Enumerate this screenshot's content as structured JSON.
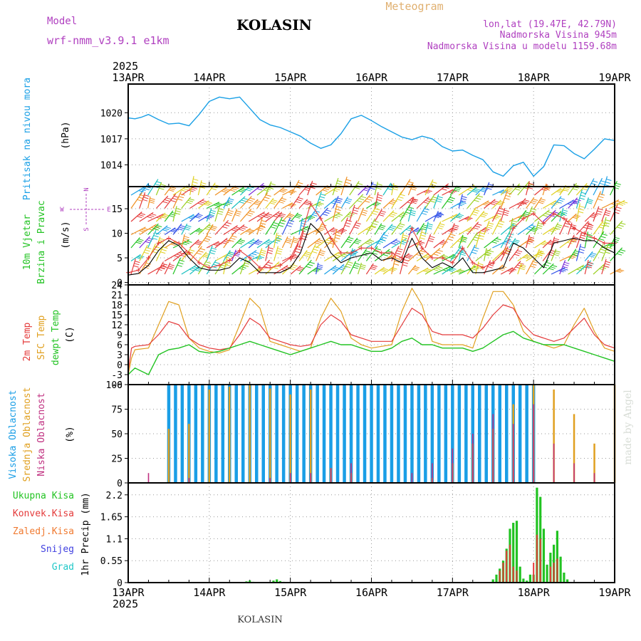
{
  "header": {
    "model_label": "Model",
    "model_name": "wrf-nmm_v3.9.1 e1km",
    "station": "KOLASIN",
    "product": "Meteogram",
    "coords": "lon,lat (19.47E, 42.79N)",
    "elevation": "Nadmorska Visina 945m",
    "model_elevation": "Nadmorska Visina u modelu 1159.68m"
  },
  "footer": {
    "station": "KOLASIN",
    "watermark": "made by Angel"
  },
  "time_axis": {
    "year_top": "2025",
    "year_bottom": "2025",
    "ticks": [
      "13APR",
      "14APR",
      "15APR",
      "16APR",
      "17APR",
      "18APR",
      "19APR"
    ]
  },
  "colors": {
    "pressure": "#1aa0e6",
    "wind_speed": "#000000",
    "gust": "#e43a3a",
    "temp2m": "#e43a3a",
    "sfc_temp": "#e0a020",
    "dewpt": "#22c322",
    "cloud_high": "#1a9ee6",
    "cloud_mid": "#e0a020",
    "cloud_low": "#c03080",
    "precip_total": "#22c322",
    "precip_conv": "#e43a3a",
    "precip_frozen": "#f07a30",
    "snow": "#4040e0",
    "graupel": "#20c8c8",
    "label_purple": "#b040c0"
  },
  "panels": {
    "pressure": {
      "label_lines": [
        "Pritisak na nivou mora"
      ],
      "unit": "(hPa)"
    },
    "wind": {
      "label_lines": [
        "10m Vjetar",
        "Brzina i Pravac"
      ],
      "unit": "(m/s)",
      "compass": [
        "W",
        "E",
        "S",
        "N"
      ]
    },
    "temp": {
      "label_lines": [
        "2m Temp",
        "SFC Temp",
        "dewpt Temp"
      ],
      "unit": "(C)"
    },
    "cloud": {
      "label_lines": [
        "Visoka Oblacnost",
        "Srednja Oblacnost",
        "Niska Oblacnost"
      ],
      "unit": "(%)"
    },
    "precip": {
      "label_lines": [
        "Ukupna Kisa",
        "Konvek.Kisa",
        "Zaledj.Kisa",
        "Snijeg",
        "Grad"
      ],
      "unit": "1hr Precip (mm)"
    }
  },
  "chart_data": [
    {
      "type": "line",
      "title": "Pritisak na nivou mora",
      "ylabel": "(hPa)",
      "ylim": [
        1011.5,
        1023.3
      ],
      "yticks": [
        "1014",
        "1017",
        "1020"
      ],
      "grid": true,
      "series": [
        {
          "name": "Pritisak na nivou mora",
          "x": [
            0,
            2,
            4,
            6,
            9,
            12,
            15,
            18,
            21,
            24,
            27,
            30,
            33,
            36,
            39,
            42,
            45,
            48,
            51,
            54,
            57,
            60,
            63,
            66,
            69,
            72,
            75,
            78,
            81,
            84,
            87,
            90,
            93,
            96,
            99,
            102,
            105,
            108,
            111,
            114,
            117,
            120,
            123,
            126,
            129,
            132,
            135,
            138,
            141,
            144
          ],
          "values": [
            1019.4,
            1019.3,
            1019.5,
            1019.8,
            1019.2,
            1018.7,
            1018.8,
            1018.5,
            1019.8,
            1021.3,
            1021.8,
            1021.6,
            1021.8,
            1020.5,
            1019.2,
            1018.6,
            1018.3,
            1017.8,
            1017.3,
            1016.5,
            1015.9,
            1016.3,
            1017.6,
            1019.3,
            1019.7,
            1019.1,
            1018.4,
            1017.8,
            1017.2,
            1016.9,
            1017.3,
            1017.0,
            1016.1,
            1015.6,
            1015.7,
            1015.1,
            1014.6,
            1013.2,
            1012.7,
            1013.9,
            1014.3,
            1012.7,
            1013.8,
            1016.3,
            1016.2,
            1015.3,
            1014.7,
            1015.8,
            1017.0,
            1016.8
          ]
        }
      ]
    },
    {
      "type": "line",
      "title": "10m Vjetar Brzina i Pravac",
      "ylabel": "(m/s)",
      "ylim": [
        -0.5,
        19.5
      ],
      "yticks": [
        "0",
        "5",
        "10",
        "15"
      ],
      "grid": true,
      "series": [
        {
          "x": [
            0,
            3,
            6,
            9,
            12,
            15,
            18,
            21,
            24,
            27,
            30,
            33,
            36,
            39,
            42,
            45,
            48,
            51,
            54,
            57,
            60,
            63,
            66,
            69,
            72,
            75,
            78,
            81,
            84,
            87,
            90,
            93,
            96,
            99,
            102,
            105,
            108,
            111,
            114,
            117,
            120,
            123,
            126,
            129,
            132,
            135,
            138,
            141,
            144
          ],
          "values": [
            1.5,
            1.8,
            3.5,
            6.5,
            8.5,
            7.5,
            5,
            3,
            2.5,
            2.5,
            3,
            5,
            4,
            2,
            2,
            2,
            3,
            6,
            12,
            10,
            6,
            4,
            5,
            5.5,
            6,
            4.5,
            5,
            4,
            9,
            5,
            3,
            4,
            3,
            5,
            2,
            2,
            2.5,
            3,
            8,
            7,
            5,
            3,
            8,
            8.5,
            9,
            8.5,
            8.5,
            7,
            6
          ]
        },
        {
          "x": [
            0,
            3,
            6,
            9,
            12,
            15,
            18,
            21,
            24,
            27,
            30,
            33,
            36,
            39,
            42,
            45,
            48,
            51,
            54,
            57,
            60,
            63,
            66,
            69,
            72,
            75,
            78,
            81,
            84,
            87,
            90,
            93,
            96,
            99,
            102,
            105,
            108,
            111,
            114,
            117,
            120,
            123,
            126,
            129,
            132,
            135,
            138,
            141,
            144
          ],
          "values": [
            2,
            2.5,
            5,
            8,
            9,
            8,
            6,
            4,
            3,
            3.5,
            4.5,
            6.5,
            5,
            3,
            3,
            3.5,
            5,
            9,
            16,
            13,
            9,
            6,
            6,
            7,
            7,
            6,
            6,
            5,
            11,
            7,
            5,
            5,
            4,
            7,
            4,
            3,
            4,
            6,
            11,
            13,
            14,
            12,
            14,
            13,
            11,
            10,
            9,
            8,
            8
          ]
        }
      ]
    },
    {
      "type": "line",
      "title": "2m Temp / SFC Temp / dewpt Temp",
      "ylabel": "(C)",
      "ylim": [
        -6,
        24
      ],
      "yticks": [
        "-6",
        "-3",
        "0",
        "3",
        "6",
        "9",
        "12",
        "15",
        "18",
        "21",
        "24"
      ],
      "grid": true,
      "series": [
        {
          "name": "2m Temp",
          "x": [
            0,
            1,
            2,
            6,
            9,
            12,
            15,
            18,
            21,
            24,
            27,
            30,
            33,
            36,
            39,
            42,
            45,
            48,
            51,
            54,
            57,
            60,
            63,
            66,
            69,
            72,
            75,
            78,
            81,
            84,
            87,
            90,
            93,
            96,
            99,
            102,
            105,
            108,
            111,
            114,
            117,
            120,
            123,
            126,
            129,
            132,
            135,
            138,
            141,
            144
          ],
          "values": [
            -2,
            5,
            5.5,
            6,
            9,
            13,
            12,
            8,
            6,
            5,
            4.5,
            5,
            9,
            14,
            12,
            8,
            7,
            6,
            5.5,
            6,
            12,
            15,
            13,
            9,
            8,
            7,
            7,
            7,
            12,
            17,
            15,
            10,
            9,
            9,
            9,
            8,
            11,
            15,
            18,
            17,
            12,
            9,
            8,
            7,
            8,
            11,
            14,
            9,
            6,
            5
          ]
        },
        {
          "name": "SFC Temp",
          "x": [
            0,
            1,
            2,
            6,
            9,
            12,
            15,
            18,
            21,
            24,
            27,
            30,
            33,
            36,
            39,
            42,
            45,
            48,
            51,
            54,
            57,
            60,
            63,
            66,
            69,
            72,
            75,
            78,
            81,
            84,
            87,
            90,
            93,
            96,
            99,
            102,
            105,
            108,
            111,
            114,
            117,
            120,
            123,
            126,
            129,
            132,
            135,
            138,
            141,
            144
          ],
          "values": [
            -3,
            2,
            4.5,
            5,
            12,
            19,
            18,
            8,
            5,
            4,
            3.5,
            4.5,
            12,
            20,
            17,
            7,
            6,
            5,
            4,
            5,
            14,
            20,
            16,
            8,
            6,
            5,
            5.5,
            6,
            16,
            23,
            18,
            7,
            6,
            6,
            6,
            5,
            14,
            22,
            22,
            18,
            10,
            7,
            6,
            5,
            6,
            12,
            17,
            10,
            5,
            4
          ]
        },
        {
          "name": "dewpt Temp",
          "x": [
            0,
            1,
            2,
            6,
            9,
            12,
            15,
            18,
            21,
            24,
            27,
            30,
            33,
            36,
            39,
            42,
            45,
            48,
            51,
            54,
            57,
            60,
            63,
            66,
            69,
            72,
            75,
            78,
            81,
            84,
            87,
            90,
            93,
            96,
            99,
            102,
            105,
            108,
            111,
            114,
            117,
            120,
            123,
            126,
            129,
            132,
            135,
            138,
            141,
            144
          ],
          "values": [
            -3,
            -2,
            -1,
            -3,
            3,
            4.5,
            5,
            6,
            4,
            3.5,
            4,
            5,
            6,
            7,
            6,
            5,
            4,
            3,
            4,
            5,
            6,
            7,
            6,
            6,
            5,
            4,
            4,
            5,
            7,
            8,
            6,
            6,
            5,
            5,
            5,
            4,
            5,
            7,
            9,
            10,
            8,
            7,
            6,
            6,
            6,
            5,
            4,
            3,
            2,
            1
          ]
        }
      ]
    },
    {
      "type": "bar",
      "title": "Visoka / Srednja / Niska Oblacnost",
      "ylabel": "(%)",
      "ylim": [
        0,
        100
      ],
      "yticks": [
        "0",
        "25",
        "50",
        "75",
        "100"
      ],
      "grid": true,
      "series": [
        {
          "name": "Visoka Oblacnost",
          "x": [
            12,
            14,
            16,
            18,
            20,
            22,
            24,
            26,
            28,
            30,
            32,
            34,
            36,
            38,
            40,
            42,
            44,
            46,
            48,
            50,
            52,
            54,
            56,
            58,
            60,
            62,
            64,
            66,
            68,
            70,
            72,
            74,
            76,
            78,
            80,
            82,
            84,
            86,
            88,
            90,
            92,
            94,
            96,
            98,
            100,
            102,
            104,
            106,
            108,
            110,
            112,
            114,
            116,
            118,
            120
          ],
          "values": [
            100,
            100,
            100,
            100,
            100,
            100,
            100,
            100,
            100,
            100,
            100,
            100,
            100,
            100,
            100,
            100,
            100,
            100,
            100,
            100,
            100,
            100,
            100,
            100,
            100,
            100,
            100,
            100,
            100,
            100,
            100,
            100,
            100,
            100,
            100,
            100,
            100,
            100,
            100,
            100,
            100,
            100,
            100,
            100,
            100,
            100,
            100,
            100,
            100,
            100,
            100,
            100,
            100,
            100,
            100
          ]
        },
        {
          "name": "Srednja Oblacnost",
          "x": [
            12,
            18,
            24,
            30,
            36,
            42,
            48,
            54,
            60,
            66,
            72,
            78,
            84,
            90,
            96,
            102,
            108,
            114,
            120,
            126,
            132,
            138,
            144
          ],
          "values": [
            55,
            60,
            95,
            98,
            100,
            96,
            90,
            95,
            15,
            10,
            0,
            0,
            0,
            5,
            20,
            40,
            55,
            80,
            100,
            95,
            70,
            40,
            100
          ]
        },
        {
          "name": "Niska Oblacnost",
          "x": [
            0,
            6,
            12,
            18,
            24,
            30,
            36,
            42,
            48,
            54,
            60,
            66,
            72,
            78,
            84,
            90,
            96,
            102,
            108,
            114,
            120,
            126,
            132,
            138,
            144
          ],
          "values": [
            10,
            10,
            0,
            5,
            0,
            0,
            0,
            5,
            10,
            10,
            15,
            20,
            0,
            0,
            10,
            20,
            35,
            50,
            70,
            60,
            80,
            40,
            20,
            10,
            5
          ]
        }
      ]
    },
    {
      "type": "bar",
      "title": "1hr Precip",
      "ylabel": "1hr Precip (mm)",
      "ylim": [
        0,
        2.5
      ],
      "yticks": [
        "0",
        "0.55",
        "1.1",
        "1.65",
        "2.2"
      ],
      "grid": true,
      "series": [
        {
          "name": "Ukupna Kisa",
          "x": [
            35,
            36,
            37,
            43,
            44,
            45,
            46,
            108,
            109,
            110,
            111,
            112,
            113,
            114,
            115,
            116,
            117,
            118,
            119,
            120,
            121,
            122,
            123,
            124,
            125,
            126,
            127,
            128,
            129,
            130
          ],
          "values": [
            0.03,
            0.05,
            0.02,
            0.05,
            0.08,
            0.04,
            0.02,
            0.08,
            0.2,
            0.35,
            0.55,
            0.85,
            1.35,
            1.5,
            1.55,
            0.4,
            0.1,
            0.05,
            0.2,
            0.2,
            2.38,
            2.15,
            1.35,
            0.45,
            0.75,
            0.95,
            1.3,
            0.65,
            0.25,
            0.08
          ]
        },
        {
          "name": "Konvek.Kisa",
          "x": [
            110,
            111,
            112,
            113,
            114,
            115,
            120,
            121,
            122,
            125,
            126,
            127
          ],
          "values": [
            0.3,
            0.5,
            0.8,
            0.95,
            0.4,
            0.3,
            0.5,
            1.2,
            1.1,
            0.4,
            0.5,
            0.6
          ]
        }
      ]
    }
  ]
}
